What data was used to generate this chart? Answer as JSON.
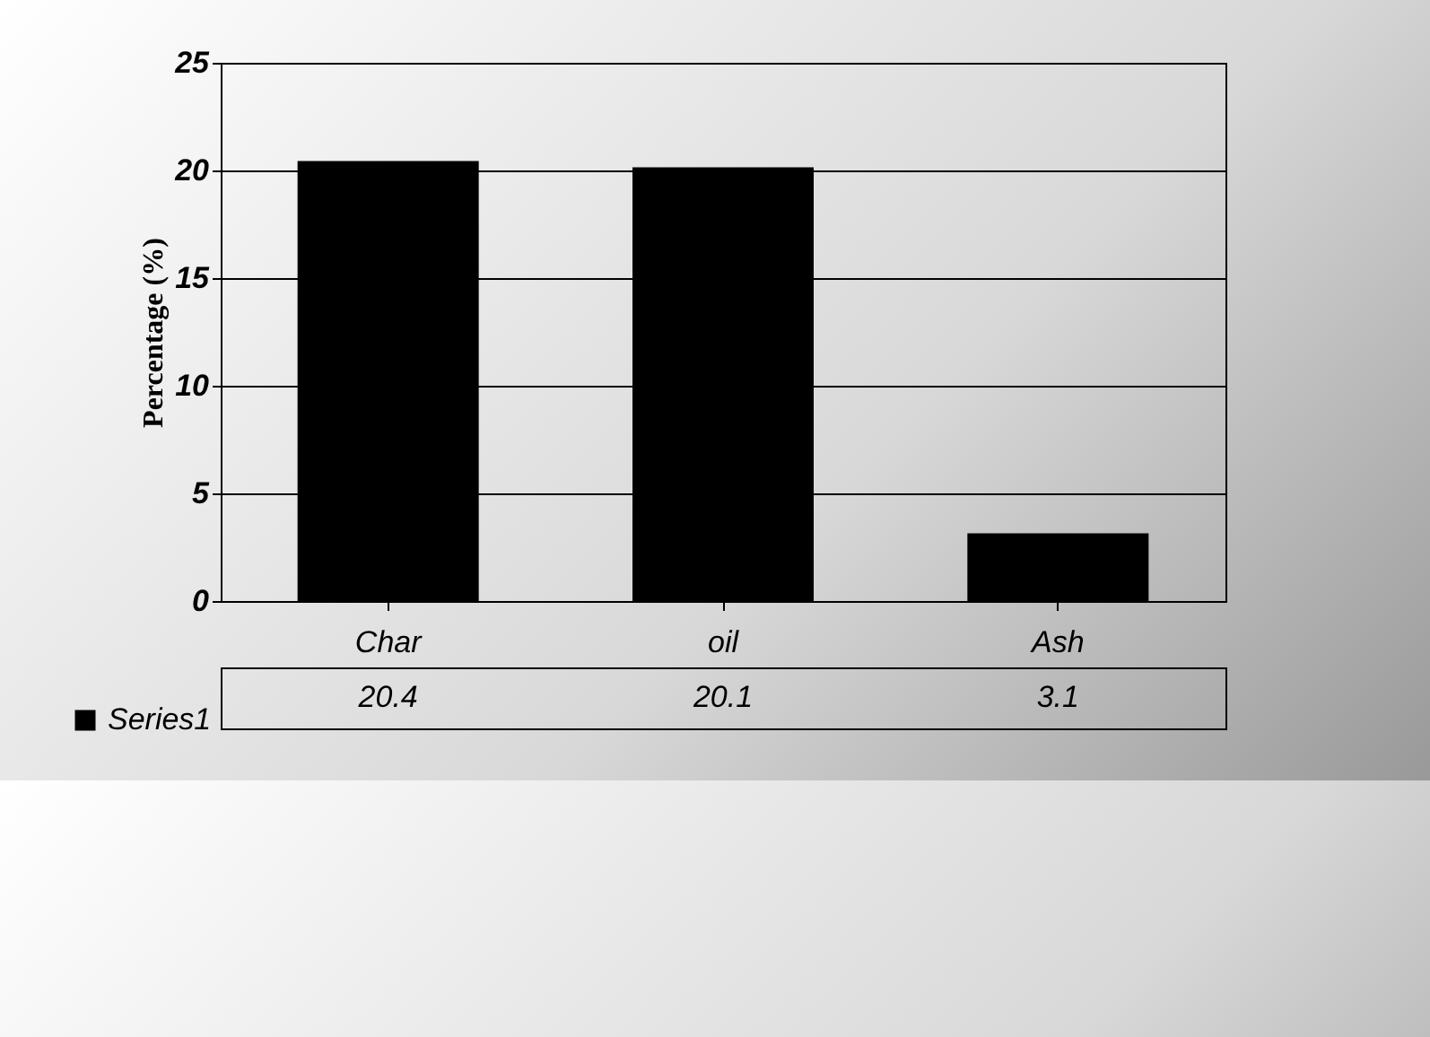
{
  "chart_data": {
    "type": "bar",
    "ylabel": "Percentage (%)",
    "categories": [
      "Char",
      "oil",
      "Ash"
    ],
    "series": [
      {
        "name": "Series1",
        "color": "#000000",
        "values": [
          20.4,
          20.1,
          3.1
        ]
      }
    ],
    "ylim": [
      0,
      25
    ],
    "yticks": [
      0,
      5,
      10,
      15,
      20,
      25
    ],
    "grid": "y",
    "legend": "bottom left",
    "data_labels": true
  }
}
